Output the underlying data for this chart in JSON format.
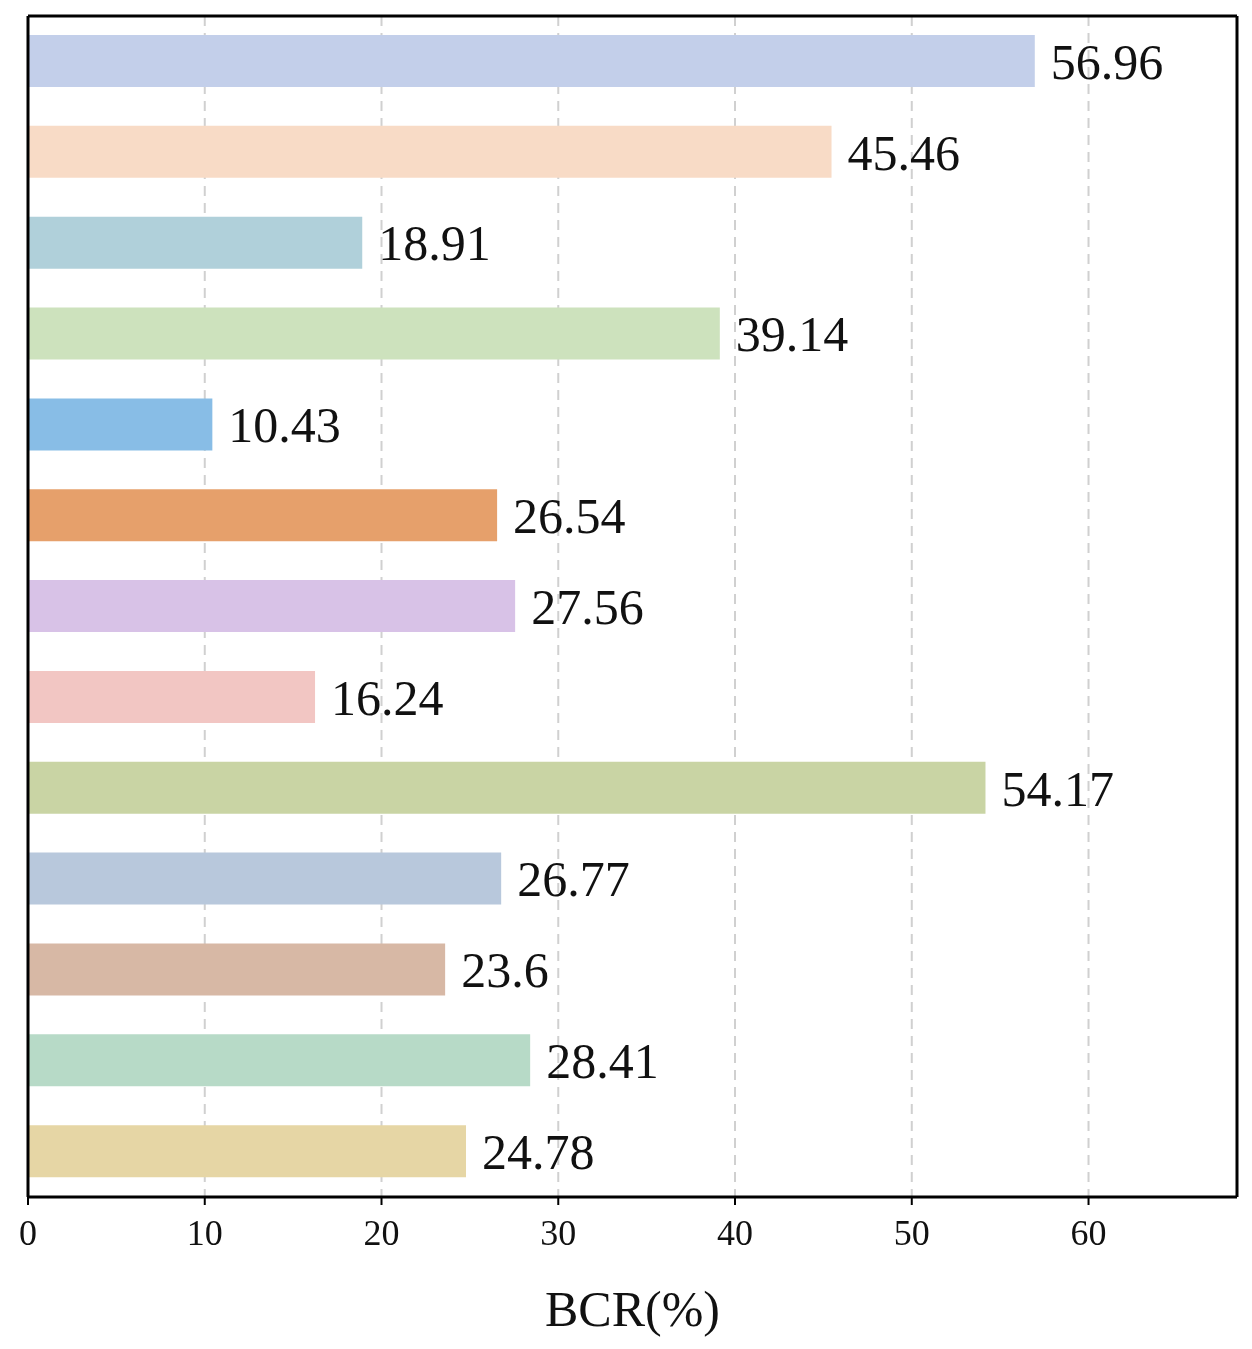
{
  "chart_data": {
    "type": "bar",
    "orientation": "horizontal",
    "xlabel": "BCR(%)",
    "categories": [
      null,
      null,
      null,
      null,
      null,
      null,
      null,
      null,
      null,
      null,
      null,
      null,
      null
    ],
    "values": [
      56.96,
      45.46,
      18.91,
      39.14,
      10.43,
      26.54,
      27.56,
      16.24,
      54.17,
      26.77,
      23.6,
      28.41,
      24.78
    ],
    "colors": [
      "#c3cfea",
      "#f8dbc6",
      "#b0d0da",
      "#cde2bd",
      "#88bde6",
      "#e6a06b",
      "#d8c2e7",
      "#f2c6c3",
      "#c9d4a4",
      "#b8c8dc",
      "#d7b8a5",
      "#b7dac7",
      "#e6d6a5"
    ],
    "xlim": [
      0,
      68.4
    ],
    "xticks": [
      0,
      10,
      20,
      30,
      40,
      50,
      60
    ],
    "grid": "x",
    "data_labels": true,
    "tick_labels": "x"
  }
}
